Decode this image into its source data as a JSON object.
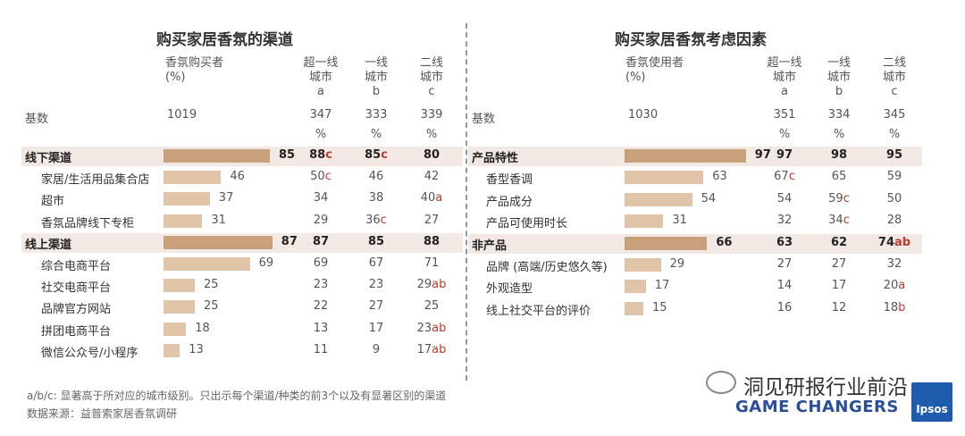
{
  "colors": {
    "dark_bar": "#c8a07c",
    "light_bar": "#dfc4a8",
    "band": "#f2e9e4",
    "sig": "#c0392b",
    "divider": "#8a9bb0"
  },
  "chart_data": [
    {
      "type": "bar",
      "title": "购买家居香氛的渠道",
      "columns": {
        "total": "香氛购买者\n(%)",
        "a": "超一线\n城市\na",
        "b": "一线\n城市\nb",
        "c": "二线\n城市\nc"
      },
      "base": {
        "label": "基数",
        "total": "1019",
        "a": "347",
        "b": "333",
        "c": "339"
      },
      "pct": "%",
      "categories": [
        "线下渠道",
        "家居/生活用品集合店",
        "超市",
        "香氛品牌线下专柜",
        "线上渠道",
        "综合电商平台",
        "社交电商平台",
        "品牌官方网站",
        "拼团电商平台",
        "微信公众号/小程序"
      ],
      "values": [
        85,
        46,
        37,
        31,
        87,
        69,
        25,
        25,
        18,
        13
      ],
      "rows": [
        {
          "label": "线下渠道",
          "value": 85,
          "header": true,
          "a": "88",
          "a_sig": "c",
          "b": "85",
          "b_sig": "c",
          "c": "80",
          "c_sig": ""
        },
        {
          "label": "家居/生活用品集合店",
          "value": 46,
          "header": false,
          "a": "50",
          "a_sig": "c",
          "b": "46",
          "b_sig": "",
          "c": "42",
          "c_sig": ""
        },
        {
          "label": "超市",
          "value": 37,
          "header": false,
          "a": "34",
          "a_sig": "",
          "b": "38",
          "b_sig": "",
          "c": "40",
          "c_sig": "a"
        },
        {
          "label": "香氛品牌线下专柜",
          "value": 31,
          "header": false,
          "a": "29",
          "a_sig": "",
          "b": "36",
          "b_sig": "c",
          "c": "27",
          "c_sig": ""
        },
        {
          "label": "线上渠道",
          "value": 87,
          "header": true,
          "a": "87",
          "a_sig": "",
          "b": "85",
          "b_sig": "",
          "c": "88",
          "c_sig": ""
        },
        {
          "label": "综合电商平台",
          "value": 69,
          "header": false,
          "a": "69",
          "a_sig": "",
          "b": "67",
          "b_sig": "",
          "c": "71",
          "c_sig": ""
        },
        {
          "label": "社交电商平台",
          "value": 25,
          "header": false,
          "a": "23",
          "a_sig": "",
          "b": "23",
          "b_sig": "",
          "c": "29",
          "c_sig": "ab"
        },
        {
          "label": "品牌官方网站",
          "value": 25,
          "header": false,
          "a": "22",
          "a_sig": "",
          "b": "27",
          "b_sig": "",
          "c": "25",
          "c_sig": ""
        },
        {
          "label": "拼团电商平台",
          "value": 18,
          "header": false,
          "a": "13",
          "a_sig": "",
          "b": "17",
          "b_sig": "",
          "c": "23",
          "c_sig": "ab"
        },
        {
          "label": "微信公众号/小程序",
          "value": 13,
          "header": false,
          "a": "11",
          "a_sig": "",
          "b": "9",
          "b_sig": "",
          "c": "17",
          "c_sig": "ab"
        }
      ]
    },
    {
      "type": "bar",
      "title": "购买家居香氛考虑因素",
      "columns": {
        "total": "香氛使用者\n(%)",
        "a": "超一线\n城市\na",
        "b": "一线\n城市\nb",
        "c": "二线\n城市\nc"
      },
      "base": {
        "label": "基数",
        "total": "1030",
        "a": "351",
        "b": "334",
        "c": "345"
      },
      "pct": "%",
      "categories": [
        "产品特性",
        "香型香调",
        "产品成分",
        "产品可使用时长",
        "非产品",
        "品牌 (高端/历史悠久等)",
        "外观造型",
        "线上社交平台的评价"
      ],
      "values": [
        97,
        63,
        54,
        31,
        66,
        29,
        17,
        15
      ],
      "rows": [
        {
          "label": "产品特性",
          "value": 97,
          "header": true,
          "a": "97",
          "a_sig": "",
          "b": "98",
          "b_sig": "",
          "c": "95",
          "c_sig": ""
        },
        {
          "label": "香型香调",
          "value": 63,
          "header": false,
          "a": "67",
          "a_sig": "c",
          "b": "65",
          "b_sig": "",
          "c": "59",
          "c_sig": ""
        },
        {
          "label": "产品成分",
          "value": 54,
          "header": false,
          "a": "54",
          "a_sig": "",
          "b": "59",
          "b_sig": "c",
          "c": "50",
          "c_sig": ""
        },
        {
          "label": "产品可使用时长",
          "value": 31,
          "header": false,
          "a": "32",
          "a_sig": "",
          "b": "34",
          "b_sig": "c",
          "c": "28",
          "c_sig": ""
        },
        {
          "label": "非产品",
          "value": 66,
          "header": true,
          "a": "63",
          "a_sig": "",
          "b": "62",
          "b_sig": "",
          "c": "74",
          "c_sig": "ab"
        },
        {
          "label": "品牌 (高端/历史悠久等)",
          "value": 29,
          "header": false,
          "a": "27",
          "a_sig": "",
          "b": "27",
          "b_sig": "",
          "c": "32",
          "c_sig": ""
        },
        {
          "label": "外观造型",
          "value": 17,
          "header": false,
          "a": "14",
          "a_sig": "",
          "b": "17",
          "b_sig": "",
          "c": "20",
          "c_sig": "a"
        },
        {
          "label": "线上社交平台的评价",
          "value": 15,
          "header": false,
          "a": "16",
          "a_sig": "",
          "b": "12",
          "b_sig": "",
          "c": "18",
          "c_sig": "b"
        }
      ]
    }
  ],
  "footer": {
    "note": "a/b/c: 显著高于所对应的城市级别。只出示每个渠道/种类的前3个以及有显著区别的渠道",
    "source": "数据来源：益普索家居香氛调研"
  },
  "brand": {
    "watermark": "洞见研报行业前沿",
    "tagline": "GAME CHANGERS",
    "logo": "Ipsos"
  }
}
